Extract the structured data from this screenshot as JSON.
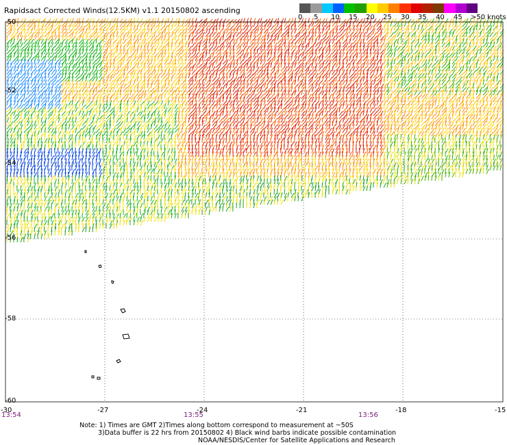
{
  "title": "Rapidsact Corrected Winds(12.5KM) v1.1 20150802 ascending",
  "color_scale": {
    "labels": [
      "0",
      "5",
      "10",
      "15",
      "20",
      "25",
      "30",
      "35",
      "40",
      "45",
      ">50 knots"
    ],
    "colors": [
      "#555555",
      "#9a9a9a",
      "#00c8ff",
      "#0060ff",
      "#00c000",
      "#20a000",
      "#ffff00",
      "#ffcc00",
      "#ff8000",
      "#ff3000",
      "#e00000",
      "#b02000",
      "#7a3a00",
      "#ff00ff",
      "#b000d0",
      "#600080"
    ]
  },
  "map": {
    "lat_labels": [
      "-50",
      "-52",
      "-54",
      "-56",
      "-58",
      "-60"
    ],
    "lon_labels": [
      "-27",
      "-24",
      "-21",
      "-18",
      "-15"
    ],
    "left_corner_label": "-30",
    "time_labels": [
      "13:54",
      "13:55",
      "13:56"
    ]
  },
  "notes": {
    "line1": "Note: 1) Times are GMT 2)Times along bottom correspond to measurement at ~50S",
    "line2": "3)Data buffer is 22 hrs from 20150802 4) Black wind barbs indicate possible contamination",
    "line3": "NOAA/NESDIS/Center for Satellite Applications and Research"
  }
}
